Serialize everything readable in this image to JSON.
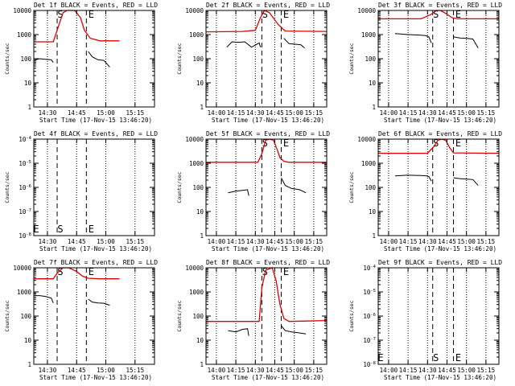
{
  "figure": {
    "colors": {
      "events": "#000000",
      "lld": "#dd0000",
      "background": "#ffffff"
    }
  },
  "chart_data": [
    {
      "type": "line",
      "title": "Det 1f BLACK = Events, RED = LLD",
      "xlabel": "Start Time (17-Nov-15 13:46:20)",
      "ylabel": "Counts/sec",
      "y_scale": "log",
      "ylim": [
        1,
        10000
      ],
      "xlim": [
        "14:23",
        "15:25"
      ],
      "x_ticks": [
        "14:30",
        "14:45",
        "15:00",
        "15:15"
      ],
      "y_ticks": [
        "1",
        "10",
        "100",
        "1000",
        "10000"
      ],
      "markers": {
        "S": "14:35",
        "E": "14:50"
      },
      "series": [
        {
          "name": "Events",
          "color": "#000000",
          "x": [
            "14:24",
            "14:26",
            "14:29",
            "14:32",
            "14:33",
            "14:51",
            "14:51",
            "14:53",
            "14:56",
            "14:59",
            "15:02"
          ],
          "values": [
            90,
            100,
            95,
            90,
            70,
            null,
            200,
            120,
            90,
            85,
            45
          ]
        },
        {
          "name": "LLD",
          "color": "#dd0000",
          "x": [
            "14:23",
            "14:33",
            "14:35",
            "14:38",
            "14:40",
            "14:44",
            "14:47",
            "14:49",
            "14:52",
            "14:57",
            "15:07"
          ],
          "values": [
            500,
            500,
            1500,
            8000,
            12000,
            10000,
            5000,
            1500,
            700,
            550,
            550
          ]
        }
      ]
    },
    {
      "type": "line",
      "title": "Det 2f BLACK = Events, RED = LLD",
      "xlabel": "Start Time (17-Nov-15 13:46:20)",
      "ylabel": "Counts/sec",
      "y_scale": "log",
      "ylim": [
        1,
        10000
      ],
      "xlim": [
        "13:52",
        "15:25"
      ],
      "x_ticks": [
        "14:00",
        "14:15",
        "14:30",
        "14:45",
        "15:00",
        "15:15"
      ],
      "y_ticks": [
        "1",
        "10",
        "100",
        "1000",
        "10000"
      ],
      "markers": {
        "S": "14:35",
        "E": "14:50"
      },
      "series": [
        {
          "name": "Events",
          "color": "#000000",
          "x": [
            "14:08",
            "14:12",
            "14:17",
            "14:22",
            "14:23",
            "14:27",
            "14:33",
            "14:34",
            "14:52",
            "14:52",
            "14:56",
            "15:00",
            "15:05",
            "15:08"
          ],
          "values": [
            300,
            500,
            480,
            500,
            450,
            300,
            450,
            300,
            null,
            700,
            420,
            400,
            380,
            280
          ]
        },
        {
          "name": "LLD",
          "color": "#dd0000",
          "x": [
            "13:52",
            "14:20",
            "14:30",
            "14:34",
            "14:37",
            "14:41",
            "14:45",
            "14:48",
            "14:50",
            "14:53",
            "15:25"
          ],
          "values": [
            1300,
            1350,
            1500,
            5000,
            12000,
            8000,
            4000,
            2500,
            2000,
            1400,
            1350
          ]
        }
      ]
    },
    {
      "type": "line",
      "title": "Det 3f BLACK = Events, RED = LLD",
      "xlabel": "Start Time (17-Nov-15 13:46:20)",
      "ylabel": "Counts/sec",
      "y_scale": "log",
      "ylim": [
        1,
        10000
      ],
      "xlim": [
        "13:52",
        "15:25"
      ],
      "x_ticks": [
        "14:00",
        "14:15",
        "14:30",
        "14:45",
        "15:00",
        "15:15"
      ],
      "y_ticks": [
        "1",
        "10",
        "100",
        "1000",
        "10000"
      ],
      "markers": {
        "S": "14:34",
        "E": "14:50"
      },
      "series": [
        {
          "name": "Events",
          "color": "#000000",
          "x": [
            "14:05",
            "14:15",
            "14:25",
            "14:29",
            "14:31",
            "14:33",
            "14:50",
            "14:50",
            "14:55",
            "15:00",
            "15:05",
            "15:09"
          ],
          "values": [
            1100,
            1000,
            950,
            900,
            800,
            450,
            null,
            800,
            720,
            700,
            650,
            280
          ]
        },
        {
          "name": "LLD",
          "color": "#dd0000",
          "x": [
            "13:52",
            "14:25",
            "14:32",
            "14:37",
            "14:40",
            "14:44",
            "14:49",
            "14:53",
            "15:25"
          ],
          "values": [
            4500,
            4500,
            6500,
            11000,
            10000,
            7500,
            5000,
            4500,
            4500
          ]
        }
      ]
    },
    {
      "type": "line",
      "title": "Det 4f BLACK = Events, RED = LLD",
      "xlabel": "Start Time (17-Nov-15 13:46:20)",
      "ylabel": "Counts/sec",
      "y_scale": "log",
      "ylim": [
        1e-08,
        0.0001
      ],
      "xlim": [
        "14:23",
        "15:25"
      ],
      "x_ticks": [
        "14:30",
        "14:45",
        "15:00",
        "15:15"
      ],
      "y_ticks": [
        "10^-8",
        "10^-7",
        "10^-6",
        "10^-5",
        "10^-4"
      ],
      "markers": {
        "S": "14:35",
        "E": "14:50"
      },
      "series": []
    },
    {
      "type": "line",
      "title": "Det 5f BLACK = Events, RED = LLD",
      "xlabel": "Start Time (17-Nov-15 13:46:20)",
      "ylabel": "Counts/sec",
      "y_scale": "log",
      "ylim": [
        1,
        10000
      ],
      "xlim": [
        "13:52",
        "15:25"
      ],
      "x_ticks": [
        "14:00",
        "14:15",
        "14:30",
        "14:45",
        "15:00",
        "15:15"
      ],
      "y_ticks": [
        "1",
        "10",
        "100",
        "1000",
        "10000"
      ],
      "markers": {
        "S": "14:35",
        "E": "14:50"
      },
      "series": [
        {
          "name": "Events",
          "color": "#000000",
          "x": [
            "14:09",
            "14:15",
            "14:20",
            "14:24",
            "14:25",
            "14:50",
            "14:50",
            "14:53",
            "14:58",
            "15:04",
            "15:09"
          ],
          "values": [
            60,
            70,
            75,
            80,
            45,
            null,
            250,
            120,
            90,
            80,
            60
          ]
        },
        {
          "name": "LLD",
          "color": "#dd0000",
          "x": [
            "13:52",
            "14:32",
            "14:35",
            "14:38",
            "14:41",
            "14:44",
            "14:47",
            "14:49",
            "14:52",
            "14:56",
            "15:25"
          ],
          "values": [
            1100,
            1100,
            2500,
            9000,
            12000,
            9000,
            3500,
            1700,
            1200,
            1100,
            1100
          ]
        }
      ]
    },
    {
      "type": "line",
      "title": "Det 6f BLACK = Events, RED = LLD",
      "xlabel": "Start Time (17-Nov-15 13:46:20)",
      "ylabel": "Counts/sec",
      "y_scale": "log",
      "ylim": [
        1,
        10000
      ],
      "xlim": [
        "13:52",
        "15:25"
      ],
      "x_ticks": [
        "14:00",
        "14:15",
        "14:30",
        "14:45",
        "15:00",
        "15:15"
      ],
      "y_ticks": [
        "1",
        "10",
        "100",
        "1000",
        "10000"
      ],
      "markers": {
        "S": "14:34",
        "E": "14:50"
      },
      "series": [
        {
          "name": "Events",
          "color": "#000000",
          "x": [
            "14:05",
            "14:15",
            "14:25",
            "14:29",
            "14:31",
            "14:33",
            "14:50",
            "14:50",
            "14:55",
            "15:00",
            "15:05",
            "15:09"
          ],
          "values": [
            300,
            320,
            310,
            300,
            280,
            180,
            null,
            250,
            230,
            220,
            210,
            120
          ]
        },
        {
          "name": "LLD",
          "color": "#dd0000",
          "x": [
            "13:52",
            "14:30",
            "14:35",
            "14:38",
            "14:41",
            "14:44",
            "14:47",
            "14:50",
            "15:25"
          ],
          "values": [
            2600,
            2600,
            5000,
            9000,
            11000,
            9000,
            4500,
            2700,
            2600
          ]
        }
      ]
    },
    {
      "type": "line",
      "title": "Det 7f BLACK = Events, RED = LLD",
      "xlabel": "Start Time (17-Nov-15 13:46:20)",
      "ylabel": "Counts/sec",
      "y_scale": "log",
      "ylim": [
        1,
        10000
      ],
      "xlim": [
        "14:23",
        "15:25"
      ],
      "x_ticks": [
        "14:30",
        "14:45",
        "15:00",
        "15:15"
      ],
      "y_ticks": [
        "1",
        "10",
        "100",
        "1000",
        "10000"
      ],
      "markers": {
        "S": "14:35",
        "E": "14:50"
      },
      "series": [
        {
          "name": "Events",
          "color": "#000000",
          "x": [
            "14:24",
            "14:26",
            "14:29",
            "14:32",
            "14:33",
            "14:51",
            "14:51",
            "14:53",
            "14:56",
            "14:59",
            "15:02"
          ],
          "values": [
            700,
            700,
            650,
            550,
            350,
            null,
            500,
            380,
            350,
            340,
            280
          ]
        },
        {
          "name": "LLD",
          "color": "#dd0000",
          "x": [
            "14:23",
            "14:33",
            "14:35",
            "14:38",
            "14:41",
            "14:45",
            "14:48",
            "14:51",
            "14:57",
            "15:07"
          ],
          "values": [
            3500,
            3500,
            6000,
            11000,
            10000,
            7000,
            4500,
            3700,
            3500,
            3500
          ]
        }
      ]
    },
    {
      "type": "line",
      "title": "Det 8f BLACK = Events, RED = LLD",
      "xlabel": "Start Time (17-Nov-15 13:46:20)",
      "ylabel": "Counts/sec",
      "y_scale": "log",
      "ylim": [
        1,
        10000
      ],
      "xlim": [
        "13:52",
        "15:25"
      ],
      "x_ticks": [
        "14:00",
        "14:15",
        "14:30",
        "14:45",
        "15:00",
        "15:15"
      ],
      "y_ticks": [
        "1",
        "10",
        "100",
        "1000",
        "10000"
      ],
      "markers": {
        "S": "14:35",
        "E": "14:50"
      },
      "series": [
        {
          "name": "Events",
          "color": "#000000",
          "x": [
            "14:09",
            "14:15",
            "14:20",
            "14:24",
            "14:25",
            "14:50",
            "14:50",
            "14:53",
            "14:58",
            "15:04",
            "15:09"
          ],
          "values": [
            25,
            22,
            28,
            30,
            15,
            null,
            40,
            25,
            22,
            20,
            18
          ]
        },
        {
          "name": "LLD",
          "color": "#dd0000",
          "x": [
            "13:52",
            "14:20",
            "14:33",
            "14:35",
            "14:38",
            "14:43",
            "14:46",
            "14:49",
            "14:52",
            "14:56",
            "15:25"
          ],
          "values": [
            60,
            60,
            60,
            1500,
            8000,
            10000,
            3000,
            300,
            80,
            60,
            65
          ]
        }
      ]
    },
    {
      "type": "line",
      "title": "Det 9f BLACK = Events, RED = LLD",
      "xlabel": "Start Time (17-Nov-15 13:46:20)",
      "ylabel": "Counts/sec",
      "y_scale": "log",
      "ylim": [
        1e-08,
        0.0001
      ],
      "xlim": [
        "13:52",
        "15:25"
      ],
      "x_ticks": [
        "14:00",
        "14:15",
        "14:30",
        "14:45",
        "15:00",
        "15:15"
      ],
      "y_ticks": [
        "10^-8",
        "10^-7",
        "10^-6",
        "10^-5",
        "10^-4"
      ],
      "markers": {
        "S": "14:34",
        "E": "14:50"
      },
      "series": []
    }
  ]
}
